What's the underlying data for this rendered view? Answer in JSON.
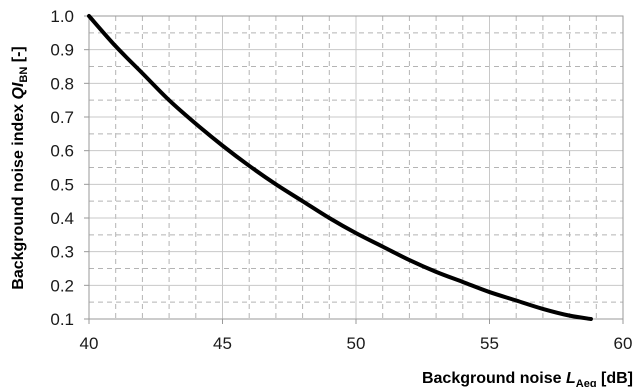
{
  "chart_data": {
    "type": "line",
    "xlabel": {
      "prefix": "Background noise ",
      "symbol": "L",
      "subscript": "Aeq",
      "unit": " [dB]"
    },
    "ylabel": {
      "prefix": "Background noise index ",
      "symbol": "QI",
      "subscript": "BN",
      "unit": " [-]"
    },
    "xlim": [
      40,
      60
    ],
    "ylim": [
      0.1,
      1.0
    ],
    "x_ticks": [
      "40",
      "45",
      "50",
      "55",
      "60"
    ],
    "y_ticks": [
      "0.1",
      "0.2",
      "0.3",
      "0.4",
      "0.5",
      "0.6",
      "0.7",
      "0.8",
      "0.9",
      "1.0"
    ],
    "grid": true,
    "x_minor_step": 1,
    "y_minor_step": 0.05,
    "line_color": "#000000",
    "grid_major_color": "#c8c8c8",
    "grid_minor_color": "#b4b4b4",
    "series": [
      {
        "x": [
          40,
          41,
          42,
          43,
          44,
          45,
          46,
          47,
          48,
          49,
          50,
          51,
          52,
          53,
          54,
          55,
          56,
          57,
          58,
          58.8
        ],
        "y": [
          1.0,
          0.91,
          0.83,
          0.75,
          0.68,
          0.615,
          0.555,
          0.5,
          0.45,
          0.4,
          0.355,
          0.315,
          0.275,
          0.24,
          0.21,
          0.18,
          0.155,
          0.13,
          0.11,
          0.1
        ]
      }
    ]
  }
}
